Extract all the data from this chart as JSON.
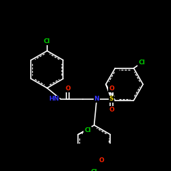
{
  "background": "#000000",
  "bond_color": "#ffffff",
  "atom_colors": {
    "Cl": "#00cc00",
    "N": "#3333ff",
    "O": "#ff2200",
    "S": "#ddcc00"
  },
  "lw": 1.2,
  "dbo": 0.055,
  "fs": 6.5
}
